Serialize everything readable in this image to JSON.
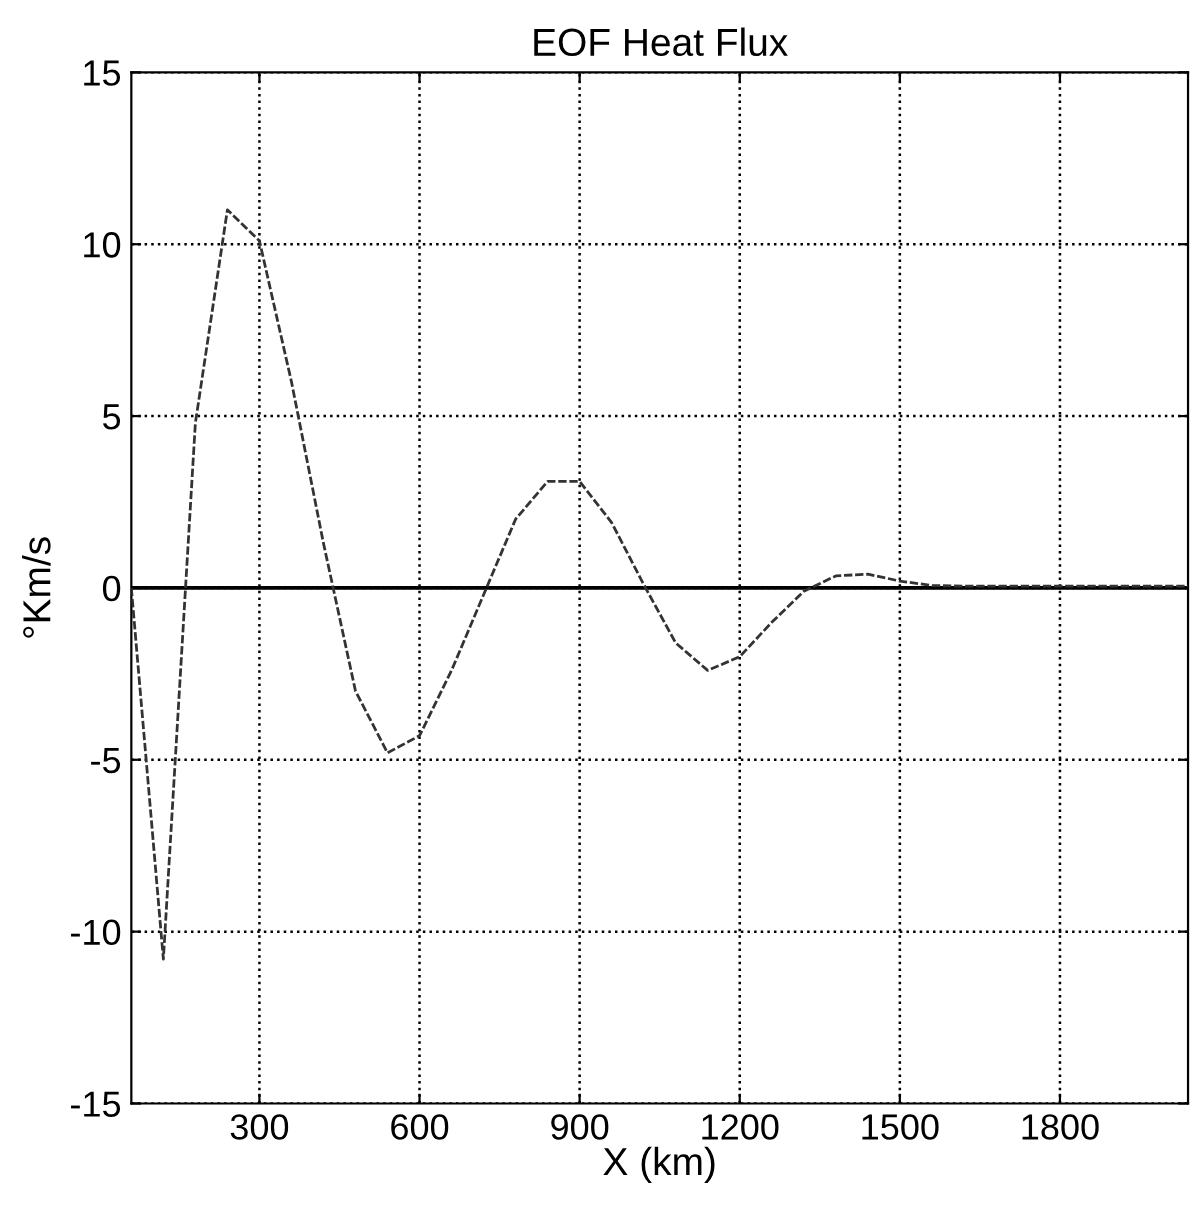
{
  "chart_data": {
    "type": "line",
    "title": "EOF Heat Flux",
    "xlabel": "X (km)",
    "ylabel": "°Km/s",
    "x": [
      60,
      120,
      180,
      240,
      300,
      360,
      420,
      480,
      540,
      600,
      660,
      720,
      780,
      840,
      900,
      960,
      1020,
      1080,
      1140,
      1200,
      1260,
      1320,
      1380,
      1440,
      1500,
      1560,
      1620,
      1680,
      1740,
      1800,
      1860,
      1920,
      1980,
      2040
    ],
    "series": [
      {
        "color": "#333333",
        "values": [
          0,
          -10.8,
          4.8,
          11,
          10.1,
          6,
          1.3,
          -3,
          -4.8,
          -4.3,
          -2.4,
          -0.2,
          2,
          3.1,
          3.1,
          1.9,
          0.1,
          -1.6,
          -2.4,
          -2,
          -1,
          -0.1,
          0.35,
          0.4,
          0.2,
          0.07,
          0.05,
          0.05,
          0.05,
          0.05,
          0.05,
          0.05,
          0.05,
          0.05
        ]
      }
    ],
    "xlim": [
      60,
      2040
    ],
    "xticks": [
      300,
      600,
      900,
      1200,
      1500,
      1800
    ],
    "ylim": [
      -15,
      15
    ],
    "yticks": [
      -15,
      -10,
      -5,
      0,
      5,
      10,
      15
    ],
    "ref_lines": [
      {
        "axis": "y",
        "value": 0,
        "color": "#000000",
        "line_style": "solid"
      }
    ],
    "grid": true,
    "line_style": "dashed",
    "marker": "none"
  }
}
